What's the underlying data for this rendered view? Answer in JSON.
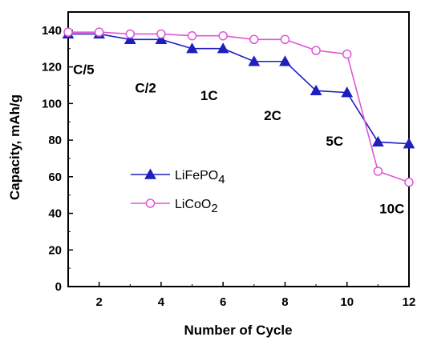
{
  "chart_data": {
    "type": "line",
    "xlabel": "Number of Cycle",
    "ylabel": "Capacity, mAh/g",
    "xlim": [
      1,
      12
    ],
    "ylim": [
      0,
      150
    ],
    "xticks": [
      2,
      4,
      6,
      8,
      10,
      12
    ],
    "yticks": [
      0,
      20,
      40,
      60,
      80,
      100,
      120,
      140
    ],
    "x": [
      1,
      2,
      3,
      4,
      5,
      6,
      7,
      8,
      9,
      10,
      11,
      12
    ],
    "series": [
      {
        "name": "LiFePO4",
        "name_main": "LiFePO",
        "name_sub": "4",
        "color": "#1f1fbf",
        "marker": "triangle-filled",
        "values": [
          138,
          138,
          135,
          135,
          130,
          130,
          123,
          123,
          107,
          106,
          79,
          78
        ]
      },
      {
        "name": "LiCoO2",
        "name_main": "LiCoO",
        "name_sub": "2",
        "color": "#e055d6",
        "marker": "circle-open",
        "values": [
          139,
          139,
          138,
          138,
          137,
          137,
          135,
          135,
          129,
          127,
          63,
          57
        ]
      }
    ],
    "annotations": [
      {
        "text": "C/5",
        "x": 1.5,
        "y": 116
      },
      {
        "text": "C/2",
        "x": 3.5,
        "y": 106
      },
      {
        "text": "1C",
        "x": 5.55,
        "y": 102
      },
      {
        "text": "2C",
        "x": 7.6,
        "y": 91
      },
      {
        "text": "5C",
        "x": 9.6,
        "y": 77
      },
      {
        "text": "10C",
        "x": 11.45,
        "y": 40
      }
    ],
    "legend_position": "center-left",
    "grid": false
  }
}
